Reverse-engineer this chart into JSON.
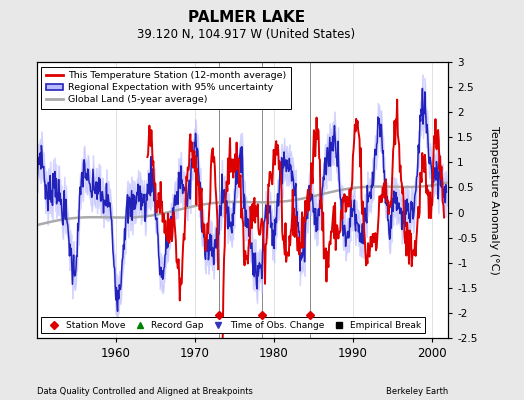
{
  "title": "PALMER LAKE",
  "subtitle": "39.120 N, 104.917 W (United States)",
  "ylabel": "Temperature Anomaly (°C)",
  "xlabel_left": "Data Quality Controlled and Aligned at Breakpoints",
  "xlabel_right": "Berkeley Earth",
  "ylim": [
    -2.5,
    3.0
  ],
  "xlim": [
    1950,
    2002
  ],
  "xticks": [
    1960,
    1970,
    1980,
    1990,
    2000
  ],
  "yticks_right": [
    -2.5,
    -2,
    -1.5,
    -1,
    -0.5,
    0,
    0.5,
    1,
    1.5,
    2,
    2.5,
    3
  ],
  "background_color": "#e8e8e8",
  "plot_bg_color": "#ffffff",
  "grid_color": "#cccccc",
  "vertical_lines": [
    1973.0,
    1978.5,
    1984.5
  ],
  "station_moves": [
    1973.0,
    1978.5,
    1984.5
  ],
  "legend_items": [
    {
      "label": "This Temperature Station (12-month average)",
      "color": "#dd0000",
      "lw": 2
    },
    {
      "label": "Regional Expectation with 95% uncertainty",
      "color": "#3333bb",
      "lw": 2
    },
    {
      "label": "Global Land (5-year average)",
      "color": "#aaaaaa",
      "lw": 2
    }
  ],
  "marker_legend": [
    {
      "label": "Station Move",
      "marker": "D",
      "color": "#dd0000"
    },
    {
      "label": "Record Gap",
      "marker": "^",
      "color": "green"
    },
    {
      "label": "Time of Obs. Change",
      "marker": "v",
      "color": "#3333bb"
    },
    {
      "label": "Empirical Break",
      "marker": "s",
      "color": "black"
    }
  ]
}
